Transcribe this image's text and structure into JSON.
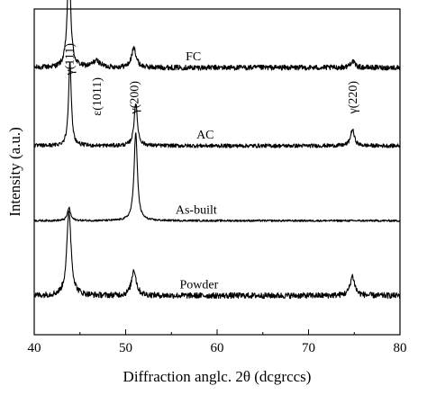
{
  "chart_data": {
    "type": "line",
    "xlabel": "Diffraction anglc. 2θ (dcgrccs)",
    "ylabel": "Intensity (a.u.)",
    "xlim": [
      40,
      80
    ],
    "x_ticks": [
      40,
      50,
      60,
      70,
      80
    ],
    "x_tick_labels": [
      "40",
      "50",
      "60",
      "70",
      "80"
    ],
    "grid": false,
    "legend": "none",
    "y_ticks": "none",
    "series": [
      {
        "name": "FC",
        "baseline": 0.82,
        "noise": 0.008,
        "peaks": [
          {
            "x": 43.8,
            "height": 0.32,
            "width": 0.22
          },
          {
            "x": 46.8,
            "height": 0.02,
            "width": 0.5
          },
          {
            "x": 50.9,
            "height": 0.06,
            "width": 0.3
          },
          {
            "x": 74.8,
            "height": 0.02,
            "width": 0.3
          }
        ]
      },
      {
        "name": "AC",
        "baseline": 0.58,
        "noise": 0.006,
        "peaks": [
          {
            "x": 43.9,
            "height": 0.26,
            "width": 0.18
          },
          {
            "x": 51.1,
            "height": 0.13,
            "width": 0.22
          },
          {
            "x": 74.8,
            "height": 0.05,
            "width": 0.25
          }
        ]
      },
      {
        "name": "As-built",
        "baseline": 0.35,
        "noise": 0.003,
        "peaks": [
          {
            "x": 43.8,
            "height": 0.04,
            "width": 0.2
          },
          {
            "x": 51.1,
            "height": 0.27,
            "width": 0.22
          }
        ]
      },
      {
        "name": "Powder",
        "baseline": 0.12,
        "noise": 0.009,
        "peaks": [
          {
            "x": 43.8,
            "height": 0.26,
            "width": 0.28
          },
          {
            "x": 50.9,
            "height": 0.08,
            "width": 0.3
          },
          {
            "x": 74.8,
            "height": 0.06,
            "width": 0.3
          }
        ]
      }
    ],
    "annotations": [
      {
        "text": "γ(111)",
        "x": 43.8,
        "attach": "FC"
      },
      {
        "text": "ε(1011)",
        "x": 46.8,
        "attach": "FC"
      },
      {
        "text": "γ(200)",
        "x": 50.9,
        "attach": "FC"
      },
      {
        "text": "γ(220)",
        "x": 74.8,
        "attach": "FC"
      }
    ]
  }
}
